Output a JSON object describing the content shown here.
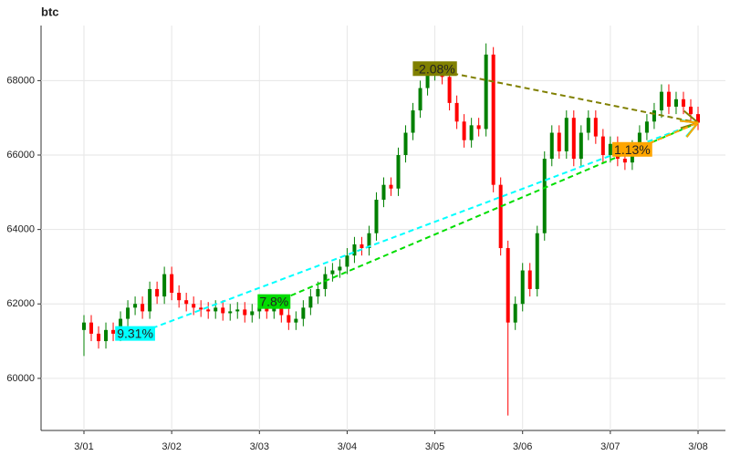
{
  "chart_data": {
    "type": "candlestick",
    "title": "btc",
    "categories": [
      "3/01",
      null,
      null,
      null,
      null,
      null,
      null,
      null,
      null,
      null,
      null,
      null,
      "3/02",
      null,
      null,
      null,
      null,
      null,
      null,
      null,
      null,
      null,
      null,
      null,
      "3/03",
      null,
      null,
      null,
      null,
      null,
      null,
      null,
      null,
      null,
      null,
      null,
      "3/04",
      null,
      null,
      null,
      null,
      null,
      null,
      null,
      null,
      null,
      null,
      null,
      "3/05",
      null,
      null,
      null,
      null,
      null,
      null,
      null,
      null,
      null,
      null,
      null,
      "3/06",
      null,
      null,
      null,
      null,
      null,
      null,
      null,
      null,
      null,
      null,
      null,
      "3/07",
      null,
      null,
      null,
      null,
      null,
      null,
      null,
      null,
      null,
      null,
      null,
      "3/08"
    ],
    "open": [
      61300,
      61500,
      61200,
      61000,
      61300,
      61200,
      61600,
      61900,
      62000,
      61800,
      62400,
      62200,
      62800,
      62300,
      62100,
      62000,
      61900,
      61850,
      61800,
      61900,
      61750,
      61800,
      61850,
      61700,
      61800,
      61900,
      61800,
      61950,
      61700,
      61500,
      61600,
      61900,
      62200,
      62400,
      62800,
      62900,
      63000,
      63300,
      63600,
      63500,
      63900,
      64800,
      65200,
      65100,
      66000,
      66600,
      67200,
      67800,
      68200,
      68300,
      68100,
      67400,
      66900,
      66400,
      66800,
      66700,
      68700,
      65200,
      63500,
      61500,
      62000,
      62900,
      62400,
      63900,
      65900,
      66600,
      66100,
      67000,
      65900,
      66600,
      67000,
      66500,
      66000,
      66300,
      65900,
      65800,
      66200,
      66600,
      66900,
      67200,
      67700,
      67300,
      67500,
      67300,
      67100
    ],
    "high": [
      61700,
      61700,
      61400,
      61500,
      61500,
      61800,
      62100,
      62200,
      62200,
      62600,
      62600,
      63000,
      63000,
      62500,
      62300,
      62200,
      62100,
      62050,
      62100,
      62100,
      62000,
      62050,
      62050,
      62000,
      62100,
      62100,
      62150,
      62150,
      61900,
      61800,
      62100,
      62400,
      62600,
      63000,
      63100,
      63200,
      63500,
      63800,
      63800,
      64100,
      65000,
      65400,
      65400,
      66200,
      66800,
      67400,
      68000,
      68400,
      68500,
      68500,
      68300,
      67600,
      67100,
      67000,
      67000,
      69000,
      68900,
      65400,
      63700,
      62200,
      63100,
      63100,
      64100,
      66100,
      66800,
      66800,
      67200,
      67200,
      66800,
      67200,
      67200,
      66700,
      66500,
      66500,
      66100,
      66400,
      66800,
      67100,
      67400,
      67900,
      67900,
      67700,
      67700,
      67500,
      67300
    ],
    "low": [
      60600,
      61000,
      60800,
      60800,
      61000,
      61000,
      61400,
      61700,
      61600,
      61600,
      62000,
      62000,
      62100,
      61900,
      61800,
      61700,
      61650,
      61600,
      61600,
      61550,
      61550,
      61600,
      61500,
      61500,
      61600,
      61600,
      61600,
      61500,
      61300,
      61300,
      61400,
      61700,
      62000,
      62200,
      62600,
      62700,
      62800,
      63100,
      63300,
      63300,
      63700,
      64600,
      64900,
      64900,
      65800,
      66400,
      67000,
      67600,
      68000,
      67900,
      67200,
      66700,
      66200,
      66200,
      66500,
      66500,
      65000,
      63300,
      59000,
      61300,
      61800,
      62200,
      62200,
      63700,
      65700,
      65900,
      65900,
      65700,
      65700,
      66400,
      66300,
      65800,
      65800,
      65700,
      65600,
      65600,
      66000,
      66400,
      66700,
      67000,
      67100,
      67100,
      67100,
      66900,
      66670
    ],
    "close": [
      61500,
      61200,
      61000,
      61300,
      61200,
      61600,
      61900,
      62000,
      61800,
      62400,
      62200,
      62800,
      62300,
      62100,
      62000,
      61900,
      61850,
      61800,
      61900,
      61750,
      61800,
      61850,
      61700,
      61800,
      61900,
      61800,
      61950,
      61700,
      61500,
      61600,
      61900,
      62200,
      62400,
      62800,
      62900,
      63000,
      63300,
      63600,
      63500,
      63900,
      64800,
      65200,
      65100,
      66000,
      66600,
      67200,
      67800,
      68200,
      68300,
      68100,
      67400,
      66900,
      66400,
      66800,
      66700,
      68700,
      65200,
      63500,
      61500,
      62000,
      62900,
      62400,
      63900,
      65900,
      66600,
      66100,
      67000,
      65900,
      66600,
      67000,
      66500,
      66000,
      66300,
      65900,
      65800,
      66200,
      66600,
      66900,
      67200,
      67700,
      67300,
      67500,
      67300,
      67100,
      66870
    ],
    "up_color": "#008000",
    "down_color": "#ff0000",
    "ylim": [
      58600,
      69480
    ],
    "yticks": [
      60000,
      62000,
      64000,
      66000,
      68000
    ],
    "grid": true,
    "annotations": [
      {
        "label": "9.31%",
        "color": "#00ffff",
        "from_index": 7,
        "from_value": 61175
      },
      {
        "label": "7.8%",
        "color": "#00dd00",
        "from_index": 26,
        "from_value": 62032
      },
      {
        "label": "-2.08%",
        "color": "#808000",
        "from_index": 48,
        "from_value": 68290
      },
      {
        "label": "1.13%",
        "color": "#ffa500",
        "from_index": 75,
        "from_value": 66121
      }
    ]
  }
}
